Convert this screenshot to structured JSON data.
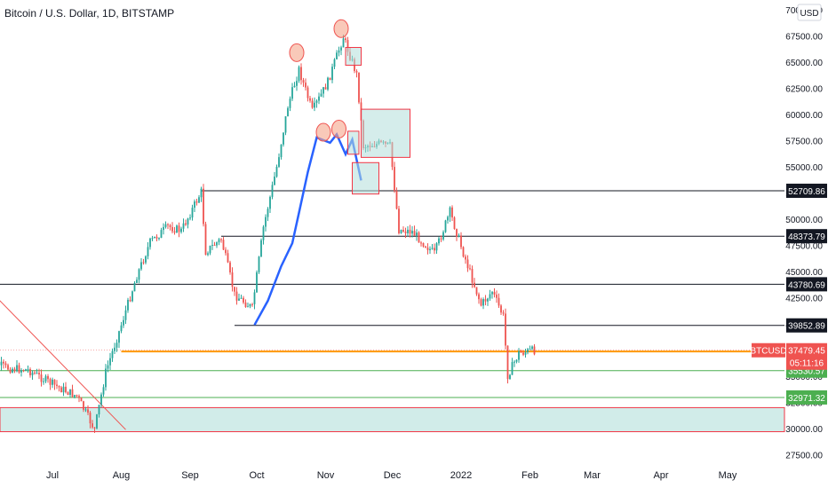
{
  "header": {
    "title": "Bitcoin / U.S. Dollar, 1D, BITSTAMP",
    "currency": "USD"
  },
  "colors": {
    "up": "#26a69a",
    "down": "#ef5350",
    "projection": "#2962ff",
    "level_line": "#131722",
    "orange_line": "#ff9800",
    "zone_fill": "#b2dfdb",
    "zone_border": "#f23645",
    "support_green": "#4caf50"
  },
  "chart_data": {
    "type": "candlestick",
    "symbol": "BTCUSD",
    "interval": "1D",
    "exchange": "BITSTAMP",
    "ylim": [
      25800,
      70200
    ],
    "y_ticks": [
      "27500.00",
      "30000.00",
      "32500.00",
      "35000.00",
      "37500.00",
      "40000.00",
      "42500.00",
      "45000.00",
      "47500.00",
      "50000.00",
      "52500.00",
      "55000.00",
      "57500.00",
      "60000.00",
      "62500.00",
      "65000.00",
      "67500.00",
      "70000.00"
    ],
    "x_ticks": [
      "Jul",
      "Aug",
      "Sep",
      "Oct",
      "Nov",
      "Dec",
      "2022",
      "Feb",
      "Mar",
      "Apr",
      "May"
    ],
    "price_series": [
      [
        "2021-06-01",
        36700
      ],
      [
        "2021-06-10",
        35800
      ],
      [
        "2021-06-20",
        35600
      ],
      [
        "2021-06-28",
        34600
      ],
      [
        "2021-07-05",
        33800
      ],
      [
        "2021-07-12",
        33100
      ],
      [
        "2021-07-20",
        29900
      ],
      [
        "2021-07-25",
        35400
      ],
      [
        "2021-08-01",
        39900
      ],
      [
        "2021-08-08",
        44600
      ],
      [
        "2021-08-14",
        47800
      ],
      [
        "2021-08-22",
        49300
      ],
      [
        "2021-08-28",
        48900
      ],
      [
        "2021-09-06",
        52600
      ],
      [
        "2021-09-08",
        46900
      ],
      [
        "2021-09-15",
        48100
      ],
      [
        "2021-09-21",
        42800
      ],
      [
        "2021-09-29",
        41500
      ],
      [
        "2021-10-04",
        49200
      ],
      [
        "2021-10-10",
        55000
      ],
      [
        "2021-10-15",
        60800
      ],
      [
        "2021-10-20",
        64300
      ],
      [
        "2021-10-26",
        60300
      ],
      [
        "2021-11-02",
        63100
      ],
      [
        "2021-11-09",
        67400
      ],
      [
        "2021-11-15",
        63800
      ],
      [
        "2021-11-18",
        57000
      ],
      [
        "2021-11-25",
        57200
      ],
      [
        "2021-11-30",
        57000
      ],
      [
        "2021-12-04",
        49000
      ],
      [
        "2021-12-10",
        48800
      ],
      [
        "2021-12-20",
        46700
      ],
      [
        "2021-12-27",
        50700
      ],
      [
        "2022-01-01",
        47400
      ],
      [
        "2022-01-10",
        41800
      ],
      [
        "2022-01-15",
        43100
      ],
      [
        "2022-01-20",
        40700
      ],
      [
        "2022-01-22",
        35100
      ],
      [
        "2022-01-27",
        37200
      ],
      [
        "2022-02-03",
        37479.45
      ]
    ],
    "projection_series": [
      [
        "2021-09-30",
        39900
      ],
      [
        "2021-10-06",
        42200
      ],
      [
        "2021-10-12",
        45500
      ],
      [
        "2021-10-17",
        47700
      ],
      [
        "2021-10-20",
        50600
      ],
      [
        "2021-10-24",
        54500
      ],
      [
        "2021-10-28",
        57800
      ],
      [
        "2021-11-03",
        57300
      ],
      [
        "2021-11-06",
        58100
      ],
      [
        "2021-11-10",
        56200
      ],
      [
        "2021-11-13",
        57600
      ],
      [
        "2021-11-17",
        53700
      ]
    ],
    "horizontal_levels": [
      {
        "label": "52709.86",
        "value": 52709.86,
        "from": "2021-09-06"
      },
      {
        "label": "48373.79",
        "value": 48373.79,
        "from": "2021-09-15"
      },
      {
        "label": "43780.69",
        "value": 43780.69,
        "from": "2021-05-20"
      },
      {
        "label": "39852.89",
        "value": 39852.89,
        "from": "2021-09-21"
      }
    ],
    "orange_level": {
      "label": "37362.22",
      "value": 37362.22,
      "from": "2021-08-01"
    },
    "green_levels": [
      {
        "label": "35530.57",
        "value": 35530.57
      },
      {
        "label": "32971.32",
        "value": 32971.32
      }
    ],
    "support_zone": [
      29700,
      32000
    ],
    "last_price": {
      "symbol": "BTCUSD",
      "price": "37479.45",
      "countdown": "05:11:16"
    },
    "trendline": [
      [
        "2021-06-06",
        42500
      ],
      [
        "2021-08-03",
        29900
      ]
    ],
    "circles": [
      [
        "2021-10-19",
        65900
      ],
      [
        "2021-11-08",
        68200
      ],
      [
        "2021-10-31",
        58300
      ],
      [
        "2021-11-07",
        58600
      ]
    ],
    "boxes": [
      [
        "2021-11-10",
        "2021-11-17",
        64700,
        66400
      ],
      [
        "2021-11-17",
        "2021-12-09",
        55900,
        60500
      ],
      [
        "2021-11-11",
        "2021-11-16",
        56200,
        58400
      ],
      [
        "2021-11-13",
        "2021-11-25",
        52400,
        55400
      ]
    ]
  }
}
